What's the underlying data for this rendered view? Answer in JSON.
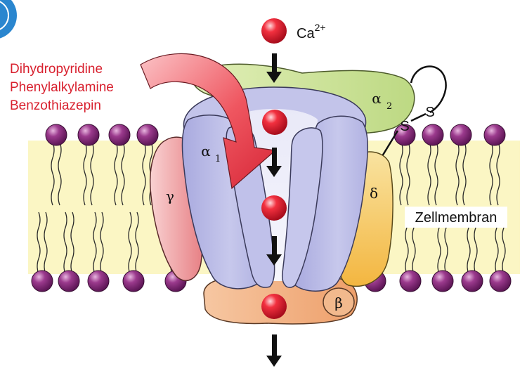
{
  "ion": {
    "base": "Ca",
    "charge": "2+"
  },
  "drugs": [
    "Dihydropyridine",
    "Phenylalkylamine",
    "Benzothiazepin"
  ],
  "subunits": {
    "alpha1": {
      "symbol": "α",
      "sub": "1"
    },
    "alpha2": {
      "symbol": "α",
      "sub": "2"
    },
    "beta": "β",
    "gamma": "γ",
    "delta": "δ"
  },
  "disulfide": {
    "s1": "S",
    "s2": "S"
  },
  "membrane_label": "Zellmembran",
  "colors": {
    "drug_text": "#d8202e",
    "ion_ball": "#e0192e",
    "lipid_head": "#8a2a7a",
    "membrane": "#fbf6c4",
    "alpha1": "#bcbde6",
    "alpha2": "#cfe39a",
    "gamma": "#f0a4a4",
    "delta": "#f7cf6c",
    "beta": "#f2b98d"
  }
}
